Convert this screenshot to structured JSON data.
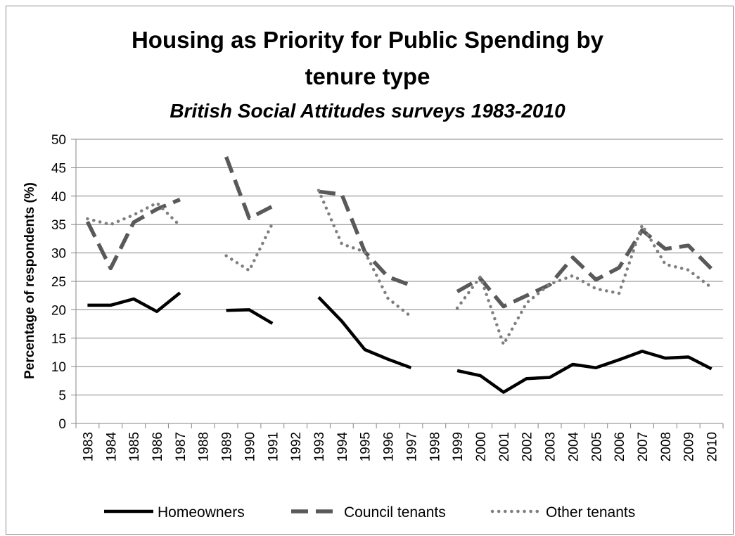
{
  "chart_data": {
    "type": "line",
    "title": "Housing as Priority for Public Spending by tenure type",
    "title_line1": "Housing as Priority for Public Spending by",
    "title_line2": "tenure type",
    "subtitle": "British Social Attitudes surveys 1983-2010",
    "xlabel": "",
    "ylabel": "Percentage of respondents (%)",
    "ylim": [
      0,
      50
    ],
    "yticks": [
      0,
      5,
      10,
      15,
      20,
      25,
      30,
      35,
      40,
      45,
      50
    ],
    "grid": true,
    "legend_position": "bottom",
    "categories": [
      "1983",
      "1984",
      "1985",
      "1986",
      "1987",
      "1988",
      "1989",
      "1990",
      "1991",
      "1992",
      "1993",
      "1994",
      "1995",
      "1996",
      "1997",
      "1998",
      "1999",
      "2000",
      "2001",
      "2002",
      "2003",
      "2004",
      "2005",
      "2006",
      "2007",
      "2008",
      "2009",
      "2010"
    ],
    "series": [
      {
        "name": "Homeowners",
        "style": "solid",
        "color": "#000000",
        "values": [
          20.8,
          20.8,
          21.9,
          19.7,
          23.0,
          null,
          19.9,
          20.0,
          17.6,
          null,
          22.2,
          18.0,
          13.0,
          11.3,
          9.8,
          null,
          9.3,
          8.4,
          5.5,
          7.9,
          8.1,
          10.4,
          9.8,
          11.2,
          12.7,
          11.5,
          11.7,
          9.6
        ]
      },
      {
        "name": "Council tenants",
        "style": "dashed",
        "color": "#595959",
        "values": [
          35.5,
          27.3,
          35.4,
          37.7,
          39.4,
          null,
          46.9,
          36.1,
          38.2,
          null,
          40.8,
          40.3,
          30.2,
          25.8,
          24.3,
          null,
          23.2,
          25.5,
          20.6,
          22.5,
          24.4,
          29.2,
          25.3,
          27.4,
          34.0,
          30.7,
          31.3,
          27.2
        ]
      },
      {
        "name": "Other tenants",
        "style": "dotted",
        "color": "#7f7f7f",
        "values": [
          36.0,
          35.0,
          36.7,
          38.8,
          34.8,
          null,
          29.5,
          26.9,
          35.2,
          null,
          41.0,
          31.6,
          30.2,
          22.0,
          18.8,
          null,
          20.3,
          25.8,
          13.9,
          21.2,
          24.5,
          26.0,
          23.7,
          22.9,
          34.9,
          28.0,
          27.0,
          23.9
        ]
      }
    ]
  }
}
